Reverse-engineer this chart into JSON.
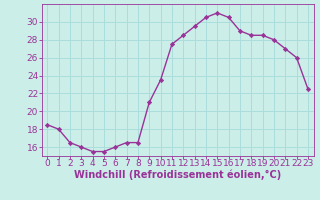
{
  "x": [
    0,
    1,
    2,
    3,
    4,
    5,
    6,
    7,
    8,
    9,
    10,
    11,
    12,
    13,
    14,
    15,
    16,
    17,
    18,
    19,
    20,
    21,
    22,
    23
  ],
  "y": [
    18.5,
    18.0,
    16.5,
    16.0,
    15.5,
    15.5,
    16.0,
    16.5,
    16.5,
    21.0,
    23.5,
    27.5,
    28.5,
    29.5,
    30.5,
    31.0,
    30.5,
    29.0,
    28.5,
    28.5,
    28.0,
    27.0,
    26.0,
    22.5
  ],
  "line_color": "#993399",
  "marker": "D",
  "markersize": 2.2,
  "linewidth": 1.0,
  "bg_color": "#cceee8",
  "grid_color": "#aadddd",
  "xlabel": "Windchill (Refroidissement éolien,°C)",
  "xlabel_color": "#993399",
  "tick_color": "#993399",
  "label_color": "#993399",
  "ylim": [
    15.0,
    32.0
  ],
  "xlim": [
    -0.5,
    23.5
  ],
  "yticks": [
    16,
    18,
    20,
    22,
    24,
    26,
    28,
    30
  ],
  "xticks": [
    0,
    1,
    2,
    3,
    4,
    5,
    6,
    7,
    8,
    9,
    10,
    11,
    12,
    13,
    14,
    15,
    16,
    17,
    18,
    19,
    20,
    21,
    22,
    23
  ],
  "xlabel_fontsize": 7.0,
  "tick_fontsize": 6.5
}
